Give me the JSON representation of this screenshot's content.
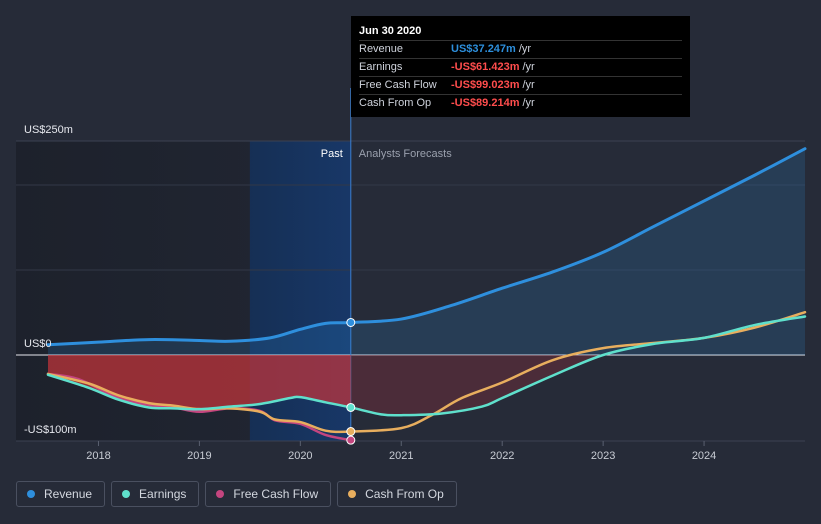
{
  "tooltip": {
    "date": "Jun 30 2020",
    "rows": [
      {
        "label": "Revenue",
        "value": "US$37.247m",
        "unit": "/yr",
        "color": "#2d8fdc"
      },
      {
        "label": "Earnings",
        "value": "-US$61.423m",
        "unit": "/yr",
        "color": "#ff4d4d"
      },
      {
        "label": "Free Cash Flow",
        "value": "-US$99.023m",
        "unit": "/yr",
        "color": "#ff4d4d"
      },
      {
        "label": "Cash From Op",
        "value": "-US$89.214m",
        "unit": "/yr",
        "color": "#ff4d4d"
      }
    ]
  },
  "legend": [
    {
      "label": "Revenue",
      "color": "#2e8fdd"
    },
    {
      "label": "Earnings",
      "color": "#5fe0cc"
    },
    {
      "label": "Free Cash Flow",
      "color": "#c4457f"
    },
    {
      "label": "Cash From Op",
      "color": "#e8ae5e"
    }
  ],
  "chart_data": {
    "type": "line",
    "title": "",
    "xlabel": "",
    "ylabel": "",
    "ylim": [
      -100,
      250
    ],
    "xlim": [
      2017.5,
      2025.0
    ],
    "x_ticks": [
      2018,
      2019,
      2020,
      2021,
      2022,
      2023,
      2024
    ],
    "y_ticks": [
      {
        "value": 250,
        "label": "US$250m"
      },
      {
        "value": 0,
        "label": "US$0"
      },
      {
        "value": -100,
        "label": "-US$100m"
      }
    ],
    "past_label": "Past",
    "forecast_label": "Analysts Forecasts",
    "past_end_x": 2020.5,
    "highlight_start_x": 2019.5,
    "series": [
      {
        "name": "Revenue",
        "color": "#2e8fdd",
        "area": true,
        "points": [
          [
            2017.5,
            12
          ],
          [
            2018.0,
            15
          ],
          [
            2018.5,
            18
          ],
          [
            2019.0,
            17
          ],
          [
            2019.3,
            16
          ],
          [
            2019.7,
            20
          ],
          [
            2020.0,
            30
          ],
          [
            2020.25,
            37
          ],
          [
            2020.5,
            38
          ],
          [
            2021.0,
            42
          ],
          [
            2021.5,
            58
          ],
          [
            2022.0,
            78
          ],
          [
            2022.5,
            97
          ],
          [
            2023.0,
            120
          ],
          [
            2023.5,
            150
          ],
          [
            2024.0,
            180
          ],
          [
            2024.5,
            210
          ],
          [
            2025.0,
            241
          ]
        ]
      },
      {
        "name": "Earnings",
        "color": "#5fe0cc",
        "area": false,
        "points": [
          [
            2017.5,
            -23
          ],
          [
            2017.9,
            -38
          ],
          [
            2018.2,
            -52
          ],
          [
            2018.5,
            -61
          ],
          [
            2018.75,
            -62
          ],
          [
            2019.0,
            -63
          ],
          [
            2019.3,
            -60
          ],
          [
            2019.6,
            -57
          ],
          [
            2019.9,
            -50
          ],
          [
            2020.0,
            -49
          ],
          [
            2020.25,
            -55
          ],
          [
            2020.5,
            -61
          ],
          [
            2020.8,
            -69
          ],
          [
            2021.0,
            -70
          ],
          [
            2021.4,
            -68
          ],
          [
            2021.8,
            -60
          ],
          [
            2022.0,
            -50
          ],
          [
            2022.5,
            -24
          ],
          [
            2023.0,
            0
          ],
          [
            2023.5,
            13
          ],
          [
            2024.0,
            20
          ],
          [
            2024.5,
            35
          ],
          [
            2025.0,
            45
          ]
        ]
      },
      {
        "name": "Free Cash Flow",
        "color": "#c4457f",
        "area": false,
        "points": [
          [
            2017.5,
            -22
          ],
          [
            2017.8,
            -28
          ],
          [
            2018.2,
            -50
          ],
          [
            2018.5,
            -58
          ],
          [
            2018.75,
            -61
          ],
          [
            2019.0,
            -66
          ],
          [
            2019.3,
            -62
          ],
          [
            2019.6,
            -65
          ],
          [
            2019.75,
            -76
          ],
          [
            2020.0,
            -80
          ],
          [
            2020.25,
            -93
          ],
          [
            2020.5,
            -99
          ]
        ]
      },
      {
        "name": "Cash From Op",
        "color": "#e8ae5e",
        "area": false,
        "points": [
          [
            2017.5,
            -22
          ],
          [
            2017.9,
            -33
          ],
          [
            2018.2,
            -47
          ],
          [
            2018.5,
            -56
          ],
          [
            2018.75,
            -59
          ],
          [
            2019.0,
            -63
          ],
          [
            2019.3,
            -62
          ],
          [
            2019.6,
            -66
          ],
          [
            2019.75,
            -75
          ],
          [
            2020.0,
            -78
          ],
          [
            2020.25,
            -88
          ],
          [
            2020.5,
            -89
          ],
          [
            2021.0,
            -85
          ],
          [
            2021.3,
            -70
          ],
          [
            2021.6,
            -50
          ],
          [
            2022.0,
            -32
          ],
          [
            2022.5,
            -6
          ],
          [
            2023.0,
            8
          ],
          [
            2023.5,
            14
          ],
          [
            2024.0,
            20
          ],
          [
            2024.5,
            32
          ],
          [
            2025.0,
            50
          ]
        ]
      }
    ]
  }
}
